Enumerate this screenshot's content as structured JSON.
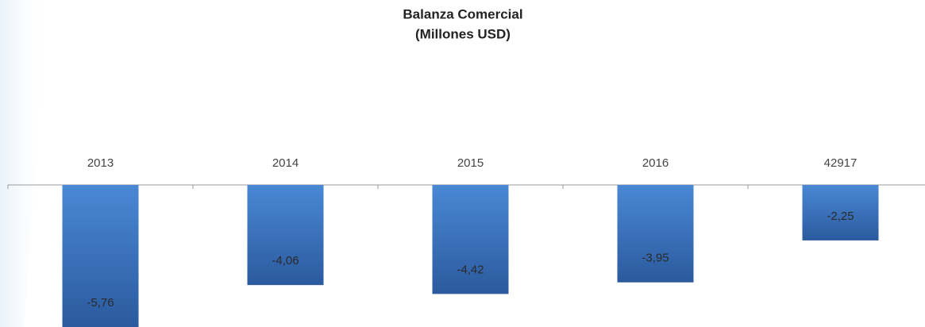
{
  "chart_data": {
    "type": "bar",
    "title": [
      "Balanza Comercial",
      "(Millones USD)"
    ],
    "categories": [
      "2013",
      "2014",
      "2015",
      "2016",
      "42917"
    ],
    "values": [
      -5.76,
      -4.06,
      -4.42,
      -3.95,
      -2.25
    ],
    "value_labels": [
      "-5,76",
      "-4,06",
      "-4,42",
      "-3,95",
      "-2,25"
    ]
  }
}
